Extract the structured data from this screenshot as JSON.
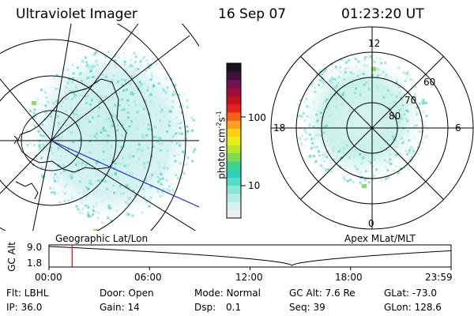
{
  "header": {
    "title": "Ultraviolet Imager",
    "date": "16 Sep 07",
    "time": "01:23:20 UT"
  },
  "left_panel": {
    "caption": "Geographic Lat/Lon"
  },
  "right_panel": {
    "caption": "Apex MLat/MLT",
    "mlt_labels": [
      "12",
      "18",
      "6",
      "0"
    ],
    "lat_labels": [
      "80",
      "70",
      "60"
    ]
  },
  "colorbar": {
    "unit_label": "photon cm",
    "unit_sup1": "-2",
    "unit_mid": "s",
    "unit_sup2": "-1",
    "tick_labels": [
      "100",
      "10"
    ],
    "ticks": [
      100,
      10
    ],
    "colors": [
      "#f0f0f0",
      "#d6f2f0",
      "#b4ece6",
      "#8be6d8",
      "#55dcc6",
      "#2ccfb8",
      "#3fd58e",
      "#7cdc4e",
      "#b8e62a",
      "#e8ef16",
      "#fbd314",
      "#fba020",
      "#f46018",
      "#e2231a",
      "#c4101c",
      "#a00c3c",
      "#741054",
      "#40103c",
      "#1a1020"
    ]
  },
  "gc_alt_plot": {
    "y_label": "GC Alt",
    "y_ticks": [
      "9.0",
      "1.8"
    ],
    "x_ticks": [
      "00:00",
      "06:00",
      "12:00",
      "18:00",
      "23:59"
    ],
    "cursor_time": "01:23"
  },
  "footer": {
    "flt": "Flt: LBHL",
    "door": "Door: Open",
    "mode": "Mode: Normal",
    "gc_alt": "GC Alt: 7.6 Re",
    "glat": "GLat: -73.0",
    "ip": "IP: 36.0",
    "gain": "Gain: 14",
    "dsp_label": "Dsp:",
    "dsp_value": "0.1",
    "seq": "Seq: 39",
    "glon": "GLon: 128.6"
  }
}
